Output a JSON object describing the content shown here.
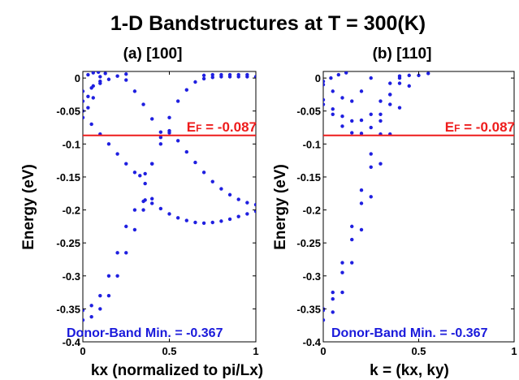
{
  "figure": {
    "title": "1-D Bandstructures at T = 300(K)"
  },
  "colors": {
    "band": "#1f1fe0",
    "fermi": "#ee1c1c",
    "donor_text": "#1a1adb"
  },
  "chart_data": [
    {
      "type": "scatter",
      "title": "(a) [100]",
      "xlabel": "kx (normalized to pi/Lx)",
      "ylabel": "Energy (eV)",
      "xlim": [
        0,
        1
      ],
      "ylim": [
        -0.4,
        0.01
      ],
      "xticks": [
        0,
        0.5,
        1
      ],
      "xtick_labels": [
        "0",
        "0.5",
        "1"
      ],
      "yticks": [
        0,
        -0.05,
        -0.1,
        -0.15,
        -0.2,
        -0.25,
        -0.3,
        -0.35,
        -0.4
      ],
      "ytick_labels": [
        "0",
        "-0.05",
        "-0.1",
        "-0.15",
        "-0.2",
        "-0.25",
        "-0.3",
        "-0.35",
        "-0.4"
      ],
      "grid": false,
      "fermi_level": -0.087,
      "fermi_label": {
        "main": "E",
        "sub": "F",
        "value": " = -0.087"
      },
      "annotation": "Donor-Band Min. = -0.367",
      "series": [
        {
          "x": [
            0,
            0.05,
            0.1,
            0.15,
            0.2,
            0.25,
            0.3,
            0.35,
            0.4
          ],
          "values": [
            -0.367,
            -0.362,
            -0.35,
            -0.33,
            -0.3,
            -0.265,
            -0.23,
            -0.2,
            -0.183
          ]
        },
        {
          "x": [
            0,
            0.05,
            0.1,
            0.15,
            0.2,
            0.25,
            0.3,
            0.35
          ],
          "values": [
            -0.352,
            -0.345,
            -0.33,
            -0.3,
            -0.265,
            -0.225,
            -0.2,
            -0.187
          ]
        },
        {
          "x": [
            0.36,
            0.4,
            0.45,
            0.5,
            0.55,
            0.6,
            0.65,
            0.7,
            0.75,
            0.8,
            0.85,
            0.9,
            0.95,
            1.0
          ],
          "values": [
            -0.185,
            -0.19,
            -0.198,
            -0.206,
            -0.212,
            -0.216,
            -0.219,
            -0.22,
            -0.219,
            -0.217,
            -0.214,
            -0.21,
            -0.206,
            -0.202
          ]
        },
        {
          "x": [
            0,
            0.05,
            0.1,
            0.15,
            0.2,
            0.25,
            0.3,
            0.33,
            0.36,
            0.4,
            0.45,
            0.5,
            0.55,
            0.6,
            0.65,
            0.7,
            0.75,
            0.8,
            0.85,
            0.9,
            0.95,
            1.0
          ],
          "values": [
            -0.06,
            -0.07,
            -0.085,
            -0.1,
            -0.115,
            -0.13,
            -0.143,
            -0.148,
            -0.145,
            -0.13,
            -0.09,
            -0.06,
            -0.035,
            -0.018,
            -0.006,
            -0.001,
            0.001,
            0.002,
            0.002,
            0.002,
            0.002,
            0.002
          ]
        },
        {
          "x": [
            0.5,
            0.55,
            0.6,
            0.65,
            0.7,
            0.75,
            0.8,
            0.85,
            0.9,
            0.95,
            1.0
          ],
          "values": [
            -0.08,
            -0.095,
            -0.112,
            -0.128,
            -0.143,
            -0.157,
            -0.168,
            -0.177,
            -0.184,
            -0.189,
            -0.192
          ]
        },
        {
          "x": [
            0.36,
            0.4,
            0.45,
            0.5
          ],
          "values": [
            -0.16,
            -0.13,
            -0.1,
            -0.083
          ]
        },
        {
          "x": [
            0.25,
            0.3,
            0.35,
            0.4,
            0.45
          ],
          "values": [
            -0.003,
            -0.02,
            -0.04,
            -0.062,
            -0.082
          ]
        },
        {
          "x": [
            0,
            0.03,
            0.06,
            0.1
          ],
          "values": [
            -0.05,
            -0.045,
            -0.03,
            -0.005
          ]
        },
        {
          "x": [
            0,
            0.03,
            0.06,
            0.1,
            0.13
          ],
          "values": [
            -0.035,
            -0.028,
            -0.012,
            0.002,
            0.007
          ]
        },
        {
          "x": [
            0,
            0.05,
            0.1,
            0.15,
            0.2,
            0.25
          ],
          "values": [
            -0.02,
            -0.015,
            -0.008,
            -0.002,
            0.003,
            0.006
          ]
        },
        {
          "x": [
            0.03,
            0.06,
            0.09
          ],
          "values": [
            0.005,
            0.008,
            0.009
          ]
        },
        {
          "x": [
            0.7,
            0.75,
            0.8,
            0.85,
            0.9,
            0.95
          ],
          "values": [
            0.004,
            0.005,
            0.005,
            0.005,
            0.005,
            0.005
          ]
        }
      ]
    },
    {
      "type": "scatter",
      "title": "(b) [110]",
      "xlabel": "k = (kx, ky)",
      "ylabel": "Energy (eV)",
      "xlim": [
        0,
        1
      ],
      "ylim": [
        -0.4,
        0.01
      ],
      "xticks": [
        0,
        0.5,
        1
      ],
      "xtick_labels": [
        "0",
        "0.5",
        "1"
      ],
      "yticks": [
        0,
        -0.05,
        -0.1,
        -0.15,
        -0.2,
        -0.25,
        -0.3,
        -0.35,
        -0.4
      ],
      "ytick_labels": [
        "0",
        "-0.05",
        "-0.1",
        "-0.15",
        "-0.2",
        "-0.25",
        "-0.3",
        "-0.35",
        "-0.4"
      ],
      "grid": false,
      "fermi_level": -0.087,
      "fermi_label": {
        "main": "E",
        "sub": "F",
        "value": " = -0.087"
      },
      "annotation": "Donor-Band Min. = -0.367",
      "series": [
        {
          "x": [
            0,
            0.05,
            0.1,
            0.15,
            0.2,
            0.25,
            0.3,
            0.35,
            0.4,
            0.45,
            0.5,
            0.55
          ],
          "values": [
            -0.367,
            -0.355,
            -0.325,
            -0.28,
            -0.23,
            -0.18,
            -0.13,
            -0.085,
            -0.045,
            -0.012,
            0.004,
            0.007
          ]
        },
        {
          "x": [
            0,
            0.05,
            0.1,
            0.15,
            0.2,
            0.25,
            0.3,
            0.35,
            0.4,
            0.45
          ],
          "values": [
            -0.352,
            -0.335,
            -0.295,
            -0.245,
            -0.19,
            -0.135,
            -0.085,
            -0.04,
            -0.008,
            0.004
          ]
        },
        {
          "x": [
            0,
            0.05,
            0.1,
            0.15,
            0.2,
            0.25,
            0.3,
            0.35,
            0.4
          ],
          "values": [
            -0.35,
            -0.325,
            -0.28,
            -0.225,
            -0.17,
            -0.115,
            -0.065,
            -0.025,
            0.0
          ]
        },
        {
          "x": [
            0,
            0.05,
            0.1,
            0.15,
            0.2,
            0.25,
            0.3,
            0.35,
            0.4
          ],
          "values": [
            -0.033,
            -0.055,
            -0.073,
            -0.083,
            -0.084,
            -0.075,
            -0.055,
            -0.025,
            0.003
          ]
        },
        {
          "x": [
            0,
            0.05,
            0.1,
            0.15,
            0.2,
            0.25,
            0.3,
            0.35
          ],
          "values": [
            -0.04,
            -0.047,
            -0.058,
            -0.065,
            -0.064,
            -0.055,
            -0.035,
            -0.008
          ]
        },
        {
          "x": [
            0,
            0.05,
            0.1,
            0.15,
            0.2,
            0.25
          ],
          "values": [
            -0.01,
            -0.02,
            -0.03,
            -0.035,
            -0.02,
            0.0
          ]
        },
        {
          "x": [
            0,
            0.04,
            0.08,
            0.12
          ],
          "values": [
            -0.005,
            0.0,
            0.005,
            0.008
          ]
        }
      ]
    }
  ]
}
